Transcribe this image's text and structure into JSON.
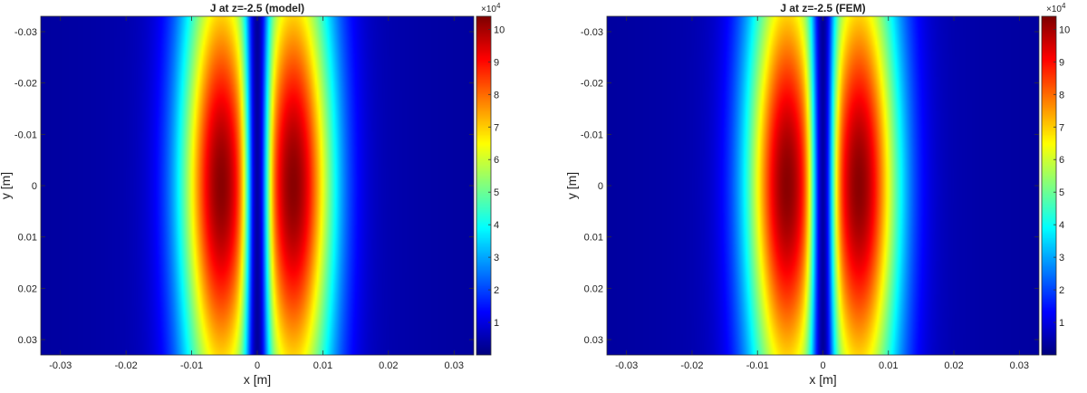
{
  "chart_data": [
    {
      "type": "heatmap",
      "title": "J at z=-2.5 (model)",
      "xlabel": "x [m]",
      "ylabel": "y [m]",
      "xlim": [
        -0.033,
        0.033
      ],
      "ylim": [
        -0.033,
        0.033
      ],
      "y_reversed": true,
      "xticks": [
        "-0.03",
        "-0.02",
        "-0.01",
        "0",
        "0.01",
        "0.02",
        "0.03"
      ],
      "yticks": [
        "-0.03",
        "-0.02",
        "-0.01",
        "0",
        "0.01",
        "0.02",
        "0.03"
      ],
      "colorbar": {
        "ticks": [
          "1",
          "2",
          "3",
          "4",
          "5",
          "6",
          "7",
          "8",
          "9",
          "10"
        ],
        "exponent_base": "×10",
        "exponent_power": "4",
        "range": [
          0,
          104000
        ]
      },
      "colormap": "jet",
      "field": {
        "peak_value": 103000,
        "peak_x": [
          -0.0055,
          0.0055
        ],
        "peak_y": 0.0,
        "center_dip_x": 0.0,
        "center_dip_value": 5000,
        "edge_value": 3000
      }
    },
    {
      "type": "heatmap",
      "title": "J at z=-2.5 (FEM)",
      "xlabel": "x [m]",
      "ylabel": "y [m]",
      "xlim": [
        -0.033,
        0.033
      ],
      "ylim": [
        -0.033,
        0.033
      ],
      "y_reversed": true,
      "xticks": [
        "-0.03",
        "-0.02",
        "-0.01",
        "0",
        "0.01",
        "0.02",
        "0.03"
      ],
      "yticks": [
        "-0.03",
        "-0.02",
        "-0.01",
        "0",
        "0.01",
        "0.02",
        "0.03"
      ],
      "colorbar": {
        "ticks": [
          "1",
          "2",
          "3",
          "4",
          "5",
          "6",
          "7",
          "8",
          "9",
          "10"
        ],
        "exponent_base": "×10",
        "exponent_power": "4",
        "range": [
          0,
          104000
        ]
      },
      "colormap": "jet",
      "field": {
        "peak_value": 103000,
        "peak_x": [
          -0.0055,
          0.0055
        ],
        "peak_y": 0.0,
        "center_dip_x": 0.0,
        "center_dip_value": 5000,
        "edge_value": 3000
      }
    }
  ]
}
